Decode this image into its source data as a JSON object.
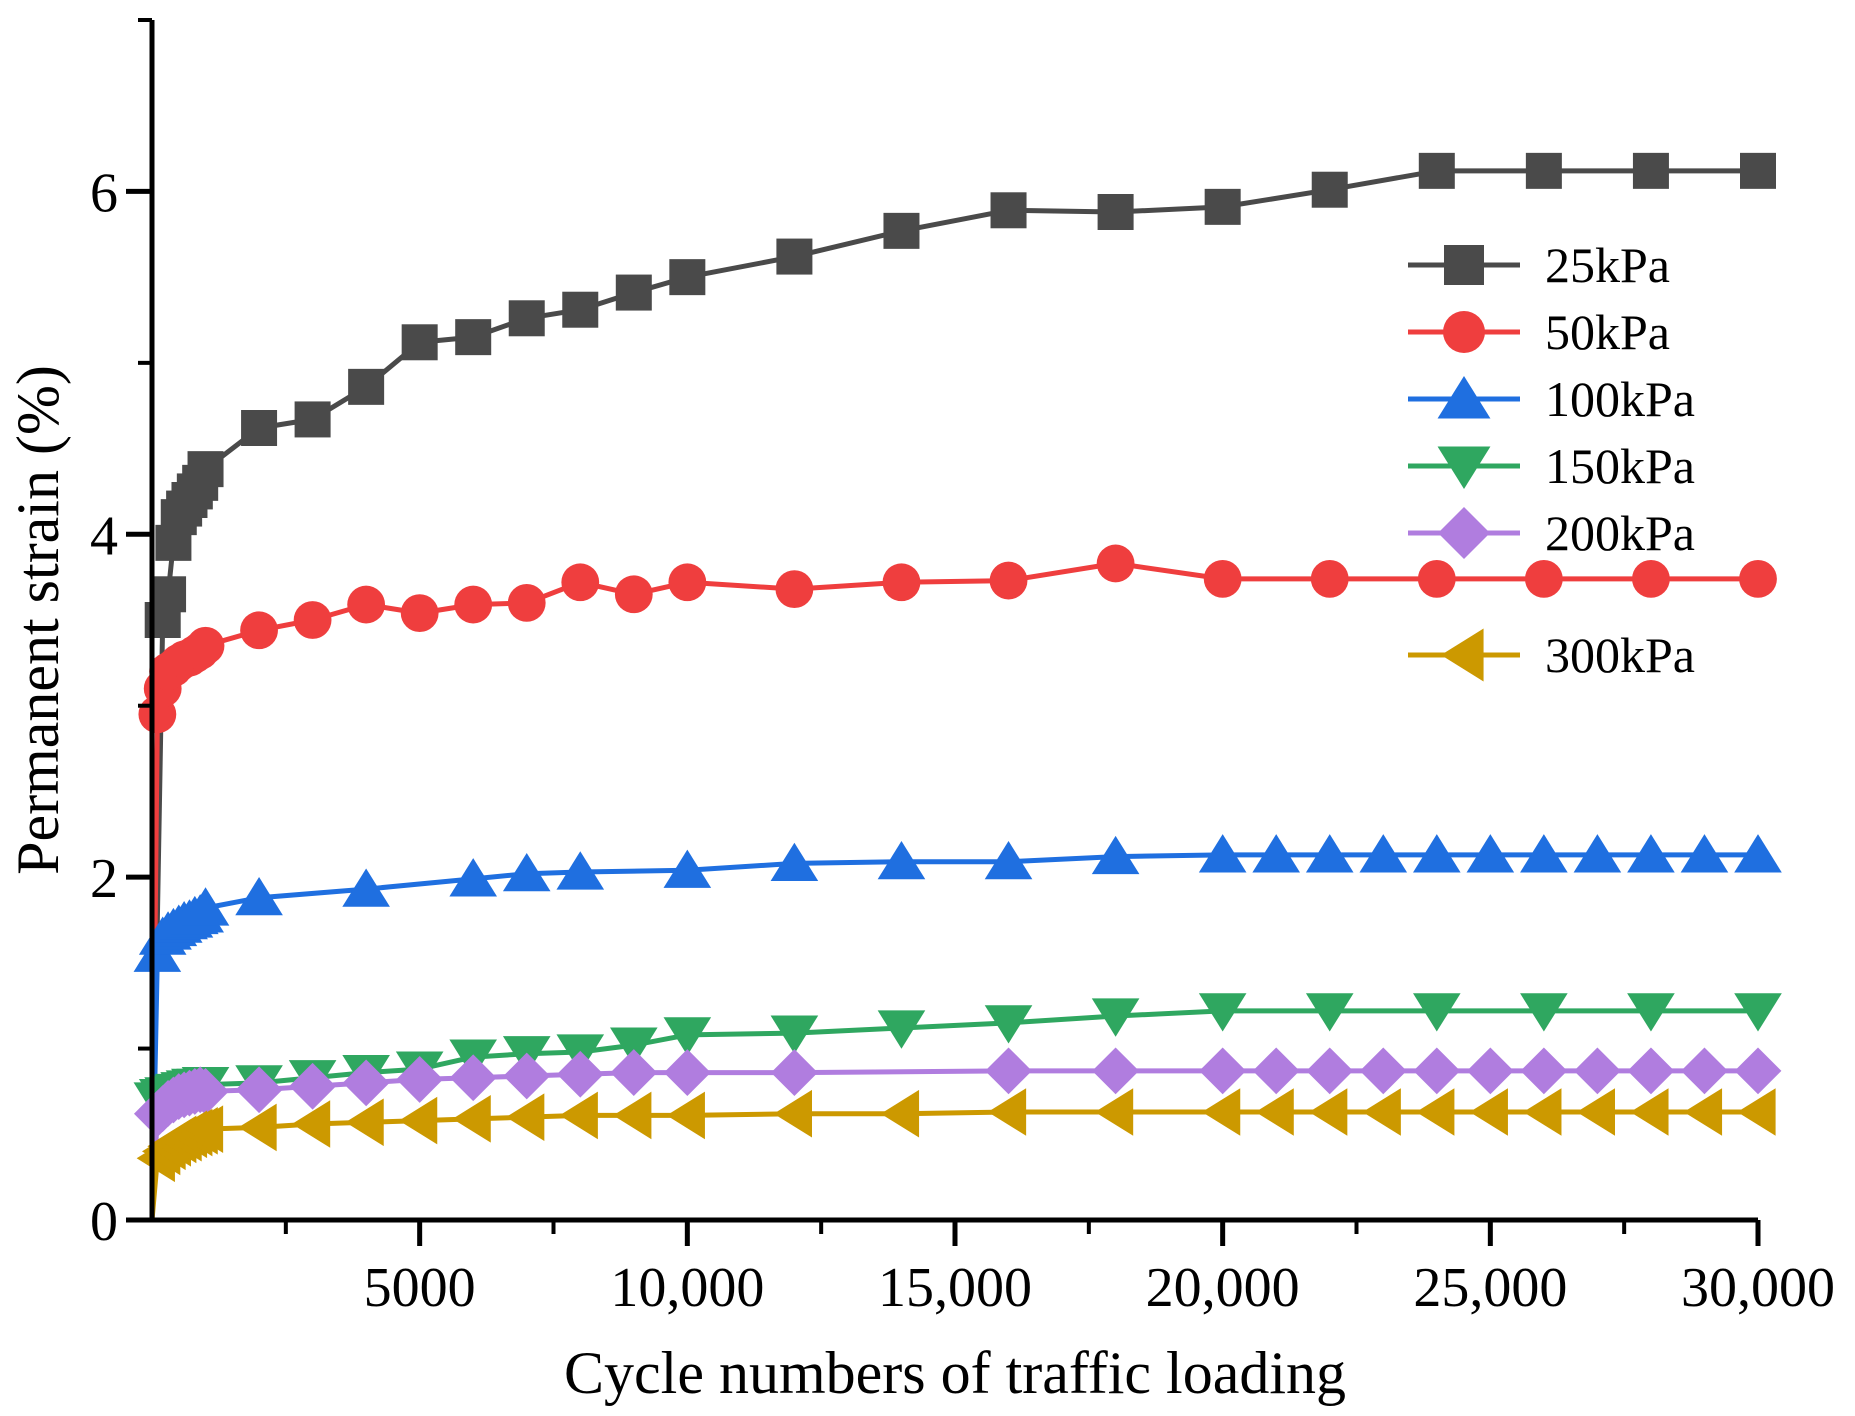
{
  "chart_data": {
    "type": "line",
    "title": "",
    "xlabel": "Cycle numbers of traffic loading",
    "ylabel": "Permanent strain (%)",
    "xlim": [
      0,
      30000
    ],
    "ylim": [
      0,
      7
    ],
    "x_ticks": [
      {
        "value": 5000,
        "label": "5000"
      },
      {
        "value": 10000,
        "label": "10,000"
      },
      {
        "value": 15000,
        "label": "15,000"
      },
      {
        "value": 20000,
        "label": "20,000"
      },
      {
        "value": 25000,
        "label": "25,000"
      },
      {
        "value": 30000,
        "label": "30,000"
      }
    ],
    "y_ticks": [
      {
        "value": 0,
        "label": "0"
      },
      {
        "value": 2,
        "label": "2"
      },
      {
        "value": 4,
        "label": "4"
      },
      {
        "value": 6,
        "label": "6"
      }
    ],
    "grid": false,
    "legend_position": "right",
    "series": [
      {
        "name": "25kPa",
        "color": "#4a4a4a",
        "marker": "square",
        "x": [
          200,
          300,
          400,
          500,
          600,
          700,
          800,
          900,
          1000,
          2000,
          3000,
          4000,
          5000,
          6000,
          7000,
          8000,
          9000,
          10000,
          12000,
          14000,
          16000,
          18000,
          20000,
          22000,
          24000,
          26000,
          28000,
          30000
        ],
        "y": [
          3.5,
          3.65,
          3.95,
          4.1,
          4.15,
          4.2,
          4.25,
          4.3,
          4.38,
          4.62,
          4.67,
          4.86,
          5.12,
          5.15,
          5.26,
          5.31,
          5.41,
          5.5,
          5.62,
          5.77,
          5.89,
          5.88,
          5.91,
          6.01,
          6.12,
          6.12,
          6.12,
          6.12
        ]
      },
      {
        "name": "50kPa",
        "color": "#ef3e3e",
        "marker": "circle",
        "x": [
          100,
          200,
          300,
          400,
          500,
          600,
          700,
          800,
          900,
          1000,
          2000,
          3000,
          4000,
          5000,
          6000,
          7000,
          8000,
          9000,
          10000,
          12000,
          14000,
          16000,
          18000,
          20000,
          22000,
          24000,
          26000,
          28000,
          30000
        ],
        "y": [
          2.95,
          3.1,
          3.2,
          3.22,
          3.25,
          3.27,
          3.28,
          3.3,
          3.32,
          3.35,
          3.44,
          3.5,
          3.59,
          3.54,
          3.59,
          3.6,
          3.72,
          3.65,
          3.72,
          3.68,
          3.72,
          3.73,
          3.83,
          3.74,
          3.74,
          3.74,
          3.74,
          3.74,
          3.74
        ]
      },
      {
        "name": "100kPa",
        "color": "#1f6fe0",
        "marker": "triangle-up",
        "x": [
          100,
          200,
          300,
          400,
          500,
          600,
          700,
          800,
          900,
          1000,
          2000,
          4000,
          6000,
          7000,
          8000,
          10000,
          12000,
          14000,
          16000,
          18000,
          20000,
          21000,
          22000,
          23000,
          24000,
          25000,
          26000,
          27000,
          28000,
          29000,
          30000
        ],
        "y": [
          1.55,
          1.65,
          1.68,
          1.7,
          1.72,
          1.74,
          1.75,
          1.77,
          1.78,
          1.82,
          1.88,
          1.93,
          1.99,
          2.02,
          2.03,
          2.04,
          2.08,
          2.09,
          2.09,
          2.12,
          2.13,
          2.13,
          2.13,
          2.13,
          2.13,
          2.13,
          2.13,
          2.13,
          2.13,
          2.13,
          2.13
        ]
      },
      {
        "name": "150kPa",
        "color": "#2fa760",
        "marker": "triangle-down",
        "x": [
          100,
          200,
          300,
          400,
          500,
          600,
          700,
          800,
          900,
          1000,
          2000,
          3000,
          4000,
          5000,
          6000,
          7000,
          8000,
          9000,
          10000,
          12000,
          14000,
          16000,
          18000,
          20000,
          22000,
          24000,
          26000,
          28000,
          30000
        ],
        "y": [
          0.7,
          0.72,
          0.73,
          0.74,
          0.75,
          0.76,
          0.77,
          0.78,
          0.78,
          0.79,
          0.8,
          0.83,
          0.86,
          0.88,
          0.95,
          0.97,
          0.98,
          1.02,
          1.08,
          1.09,
          1.12,
          1.15,
          1.19,
          1.22,
          1.22,
          1.22,
          1.22,
          1.22,
          1.22
        ]
      },
      {
        "name": "200kPa",
        "color": "#b07ddf",
        "marker": "diamond",
        "x": [
          100,
          200,
          300,
          400,
          500,
          600,
          700,
          800,
          900,
          1000,
          2000,
          3000,
          4000,
          5000,
          6000,
          7000,
          8000,
          9000,
          10000,
          12000,
          16000,
          18000,
          20000,
          21000,
          22000,
          23000,
          24000,
          25000,
          26000,
          27000,
          28000,
          29000,
          30000
        ],
        "y": [
          0.62,
          0.65,
          0.68,
          0.7,
          0.72,
          0.73,
          0.74,
          0.75,
          0.76,
          0.75,
          0.76,
          0.78,
          0.8,
          0.82,
          0.83,
          0.84,
          0.85,
          0.86,
          0.86,
          0.86,
          0.87,
          0.87,
          0.87,
          0.87,
          0.87,
          0.87,
          0.87,
          0.87,
          0.87,
          0.87,
          0.87,
          0.87,
          0.87
        ]
      },
      {
        "name": "300kPa",
        "color": "#cc9900",
        "marker": "triangle-left",
        "x": [
          100,
          200,
          300,
          400,
          500,
          600,
          700,
          800,
          900,
          1000,
          2000,
          3000,
          4000,
          5000,
          6000,
          7000,
          8000,
          9000,
          10000,
          12000,
          14000,
          16000,
          18000,
          20000,
          21000,
          22000,
          23000,
          24000,
          25000,
          26000,
          27000,
          28000,
          29000,
          30000
        ],
        "y": [
          0.36,
          0.4,
          0.43,
          0.45,
          0.47,
          0.48,
          0.5,
          0.51,
          0.52,
          0.53,
          0.54,
          0.56,
          0.57,
          0.58,
          0.59,
          0.6,
          0.61,
          0.61,
          0.61,
          0.62,
          0.62,
          0.63,
          0.63,
          0.63,
          0.63,
          0.63,
          0.63,
          0.63,
          0.63,
          0.63,
          0.63,
          0.63,
          0.63,
          0.63
        ]
      }
    ]
  }
}
